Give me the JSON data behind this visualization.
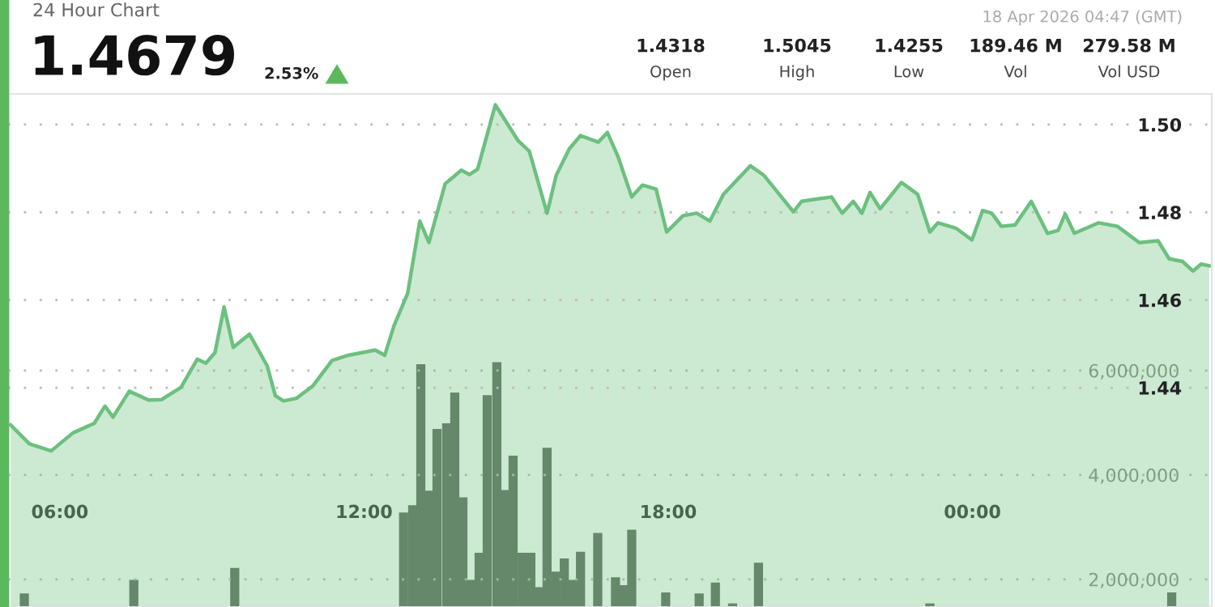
{
  "chart_data": {
    "type": "area",
    "title": "24 Hour Chart",
    "subtitle": "1.4679",
    "annotations": [
      "2.53%",
      "18 Apr 2026 04:47 (GMT)",
      "1.4318",
      "Open",
      "1.5045",
      "High",
      "1.4255",
      "Low",
      "189.46 M",
      "Vol",
      "279.58 M",
      "Vol USD"
    ],
    "series": [
      {
        "color": "#6cc07f",
        "x": [
          5.03,
          5.4,
          5.83,
          6.26,
          6.68,
          6.89,
          7.05,
          7.37,
          7.75,
          8.01,
          8.39,
          8.71,
          8.88,
          9.06,
          9.24,
          9.42,
          9.74,
          10.09,
          10.25,
          10.41,
          10.67,
          10.99,
          11.37,
          11.69,
          12.22,
          12.41,
          12.59,
          12.86,
          13.1,
          13.28,
          13.6,
          13.92,
          14.08,
          14.24,
          14.59,
          15.04,
          15.26,
          15.61,
          15.79,
          16.05,
          16.27,
          16.62,
          16.8,
          17.01,
          17.28,
          17.49,
          17.76,
          17.97,
          18.29,
          18.56,
          18.82,
          19.09,
          19.62,
          19.89,
          20.47,
          20.63,
          21.22,
          21.43,
          21.65,
          21.82,
          21.98,
          22.18,
          22.6,
          22.92,
          23.16,
          23.32,
          23.67,
          23.99,
          24.2,
          24.38,
          24.57,
          24.84,
          25.16,
          25.48,
          25.69,
          25.83,
          26.01,
          26.49,
          26.86,
          27.29,
          27.66,
          27.88,
          28.14,
          28.35,
          28.51,
          28.67
        ],
        "values": [
          1.4315,
          1.4272,
          1.4256,
          1.4297,
          1.4319,
          1.4358,
          1.4333,
          1.4392,
          1.4372,
          1.4373,
          1.4401,
          1.4465,
          1.4456,
          1.448,
          1.4584,
          1.4492,
          1.4522,
          1.445,
          1.4382,
          1.437,
          1.4376,
          1.4404,
          1.4462,
          1.4474,
          1.4486,
          1.4474,
          1.4541,
          1.4615,
          1.478,
          1.4731,
          1.4865,
          1.4896,
          1.4886,
          1.4898,
          1.5045,
          1.4963,
          1.4939,
          1.4798,
          1.4884,
          1.4945,
          1.4975,
          1.496,
          1.4982,
          1.4927,
          1.4835,
          1.4862,
          1.4853,
          1.4755,
          1.4792,
          1.4798,
          1.478,
          1.4841,
          1.4906,
          1.4884,
          1.4801,
          1.4825,
          1.4835,
          1.4798,
          1.4825,
          1.4798,
          1.4845,
          1.4808,
          1.4868,
          1.4841,
          1.4755,
          1.4776,
          1.4764,
          1.4737,
          1.4804,
          1.4798,
          1.4768,
          1.4771,
          1.4825,
          1.4752,
          1.4759,
          1.4796,
          1.4752,
          1.4776,
          1.4768,
          1.4731,
          1.4735,
          1.4694,
          1.4688,
          1.4666,
          1.4682,
          1.4678
        ]
      },
      {
        "type": "bar",
        "axis": "y2",
        "color": "#626b62",
        "x": [
          5.3,
          7.46,
          9.45,
          12.78,
          12.96,
          13.12,
          13.28,
          13.44,
          13.63,
          13.79,
          13.95,
          14.12,
          14.27,
          14.43,
          14.62,
          14.78,
          14.94,
          15.12,
          15.29,
          15.45,
          15.61,
          15.77,
          15.95,
          16.11,
          16.27,
          16.61,
          16.96,
          17.12,
          17.28,
          17.95,
          18.61,
          18.93,
          19.27,
          19.78,
          23.16,
          27.93
        ],
        "values": [
          1730000,
          1990000,
          2220000,
          3280000,
          3420000,
          6120000,
          3700000,
          4880000,
          4990000,
          5580000,
          3570000,
          1990000,
          2510000,
          5530000,
          6160000,
          3710000,
          4370000,
          2510000,
          2510000,
          1850000,
          4520000,
          2150000,
          2400000,
          1990000,
          2530000,
          2890000,
          2040000,
          1890000,
          2950000,
          1750000,
          1730000,
          1940000,
          1540000,
          2320000,
          1540000,
          1750000
        ]
      }
    ],
    "xlim": [
      4.98,
      28.72
    ],
    "xticks": [
      {
        "value": 6,
        "label": "06:00"
      },
      {
        "value": 12,
        "label": "12:00"
      },
      {
        "value": 18,
        "label": "18:00"
      },
      {
        "value": 24,
        "label": "00:00"
      }
    ],
    "ylim": [
      1.39,
      1.507
    ],
    "yticks": [
      {
        "value": 1.44,
        "label": "1.44"
      },
      {
        "value": 1.46,
        "label": "1.46"
      },
      {
        "value": 1.48,
        "label": "1.48"
      },
      {
        "value": 1.5,
        "label": "1.50"
      }
    ],
    "y2lim": [
      1470000,
      11300000
    ],
    "y2ticks": [
      {
        "value": 2000000,
        "label": "2,000,000"
      },
      {
        "value": 4000000,
        "label": "4,000,000"
      },
      {
        "value": 6000000,
        "label": "6,000,000"
      }
    ],
    "grid": "y"
  }
}
